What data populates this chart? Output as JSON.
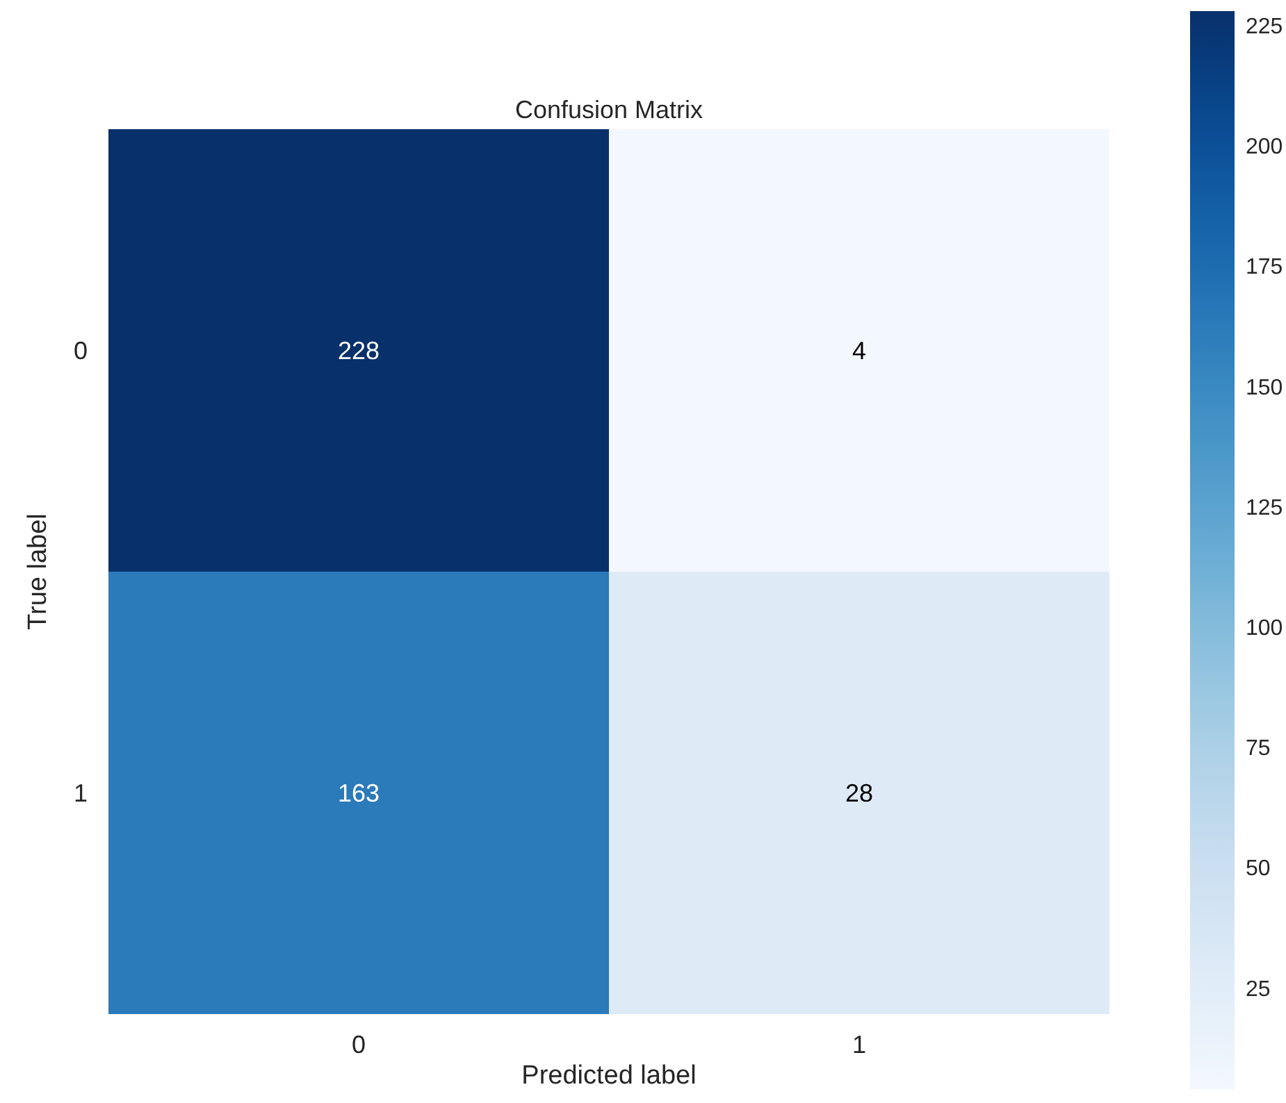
{
  "chart_data": {
    "type": "heatmap",
    "title": "Confusion Matrix",
    "xlabel": "Predicted label",
    "ylabel": "True label",
    "categories": [
      "0",
      "1"
    ],
    "y_categories": [
      "0",
      "1"
    ],
    "cells": [
      [
        228,
        4
      ],
      [
        163,
        28
      ]
    ],
    "data_labels": true,
    "clim": [
      4,
      228
    ],
    "cticks": [
      25,
      50,
      75,
      100,
      125,
      150,
      175,
      200,
      225
    ]
  }
}
